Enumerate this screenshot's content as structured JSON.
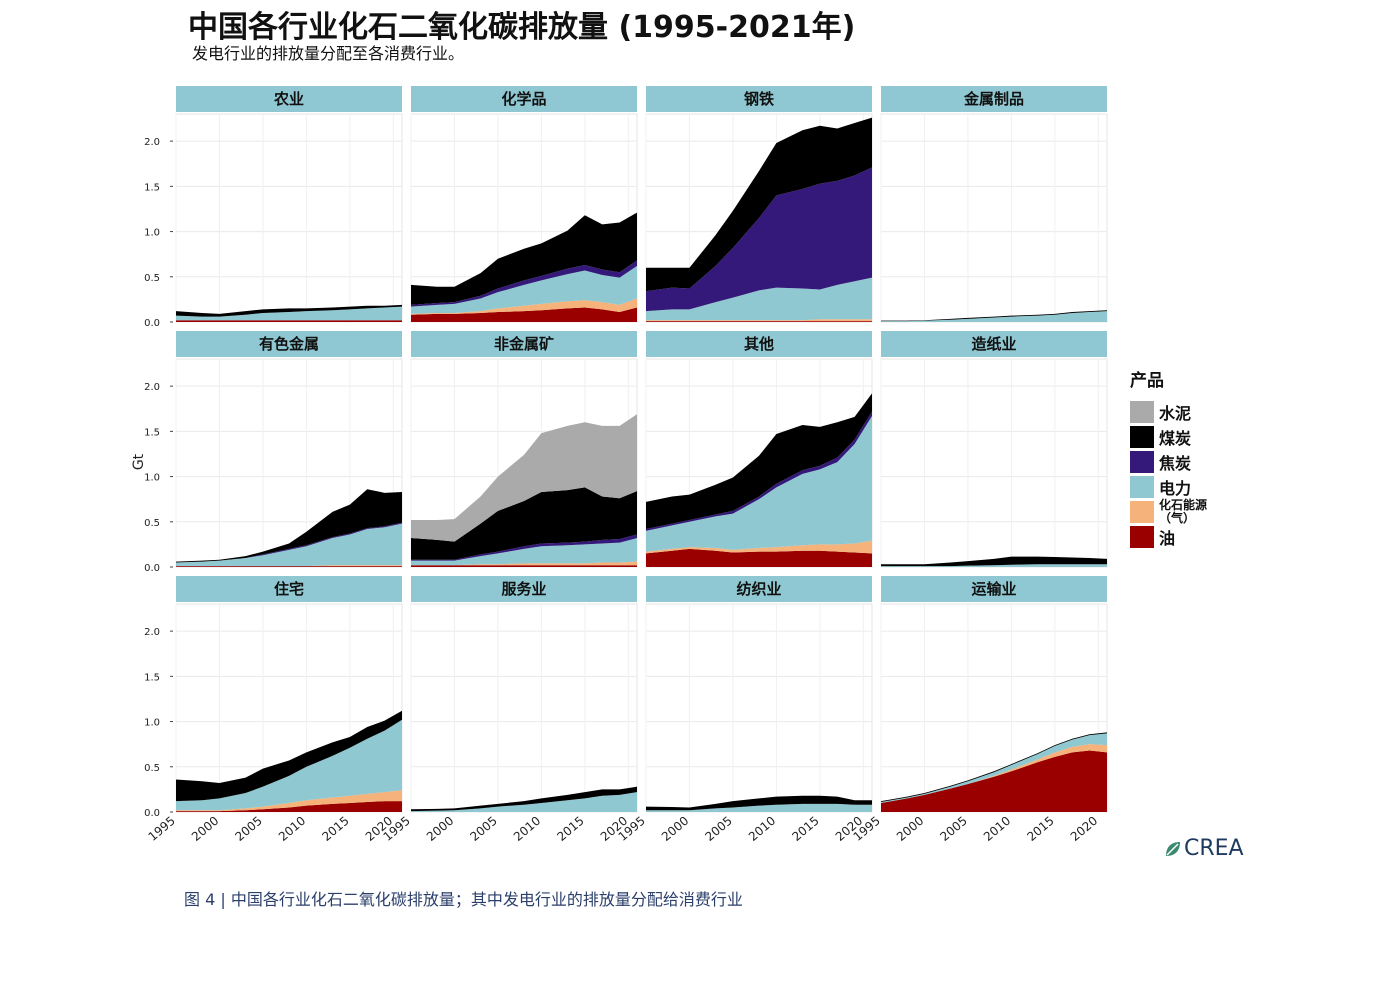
{
  "header": {
    "title": "中国各行业化石二氧化碳排放量 (1995-2021年)",
    "subtitle": "发电行业的排放量分配至各消费行业。"
  },
  "caption": "图 4 | 中国各行业化石二氧化碳排放量；其中发电行业的排放量分配给消费行业",
  "logo": {
    "text": "CREA"
  },
  "colors": {
    "水泥": "#aaaaaa",
    "煤炭": "#000000",
    "焦炭": "#35197a",
    "电力": "#90c8d2",
    "化石能源(气)": "#f5b27a",
    "油": "#9b0000",
    "panel_header": "#8fc8d2"
  },
  "legend": {
    "title": "产品",
    "items": [
      {
        "key": "水泥",
        "label": "水泥"
      },
      {
        "key": "煤炭",
        "label": "煤炭"
      },
      {
        "key": "焦炭",
        "label": "焦炭"
      },
      {
        "key": "电力",
        "label": "电力"
      },
      {
        "key": "化石能源(气)",
        "label": "化石能源（气）"
      },
      {
        "key": "油",
        "label": "油"
      }
    ]
  },
  "chart_data": {
    "type": "area",
    "stacked": true,
    "ylabel": "Gt",
    "ylim": [
      0,
      2.3
    ],
    "yticks": [
      0.0,
      0.5,
      1.0,
      1.5,
      2.0
    ],
    "ytick_labels": [
      "0.0",
      "0.5",
      "1.0",
      "1.5",
      "2.0"
    ],
    "xticks": [
      1995,
      2000,
      2005,
      2010,
      2015,
      2020
    ],
    "x": [
      1995,
      1998,
      2000,
      2003,
      2005,
      2008,
      2010,
      2013,
      2015,
      2017,
      2019,
      2021
    ],
    "grid": true,
    "stack_order": [
      "油",
      "化石能源(气)",
      "电力",
      "焦炭",
      "煤炭",
      "水泥"
    ],
    "panels": [
      {
        "name": "农业",
        "series": {
          "油": [
            0.02,
            0.02,
            0.02,
            0.02,
            0.02,
            0.02,
            0.02,
            0.02,
            0.02,
            0.02,
            0.02,
            0.02
          ],
          "化石能源(气)": [
            0,
            0,
            0,
            0,
            0,
            0,
            0,
            0,
            0,
            0,
            0,
            0
          ],
          "电力": [
            0.05,
            0.04,
            0.04,
            0.06,
            0.08,
            0.09,
            0.1,
            0.11,
            0.12,
            0.13,
            0.14,
            0.15
          ],
          "焦炭": [
            0,
            0,
            0,
            0,
            0,
            0,
            0,
            0,
            0,
            0,
            0,
            0
          ],
          "煤炭": [
            0.05,
            0.04,
            0.03,
            0.04,
            0.04,
            0.04,
            0.03,
            0.03,
            0.03,
            0.03,
            0.02,
            0.02
          ],
          "水泥": [
            0,
            0,
            0,
            0,
            0,
            0,
            0,
            0,
            0,
            0,
            0,
            0
          ]
        }
      },
      {
        "name": "化学品",
        "series": {
          "油": [
            0.08,
            0.09,
            0.09,
            0.1,
            0.11,
            0.12,
            0.13,
            0.15,
            0.16,
            0.14,
            0.11,
            0.16
          ],
          "化石能源(气)": [
            0.01,
            0.01,
            0.01,
            0.02,
            0.04,
            0.06,
            0.07,
            0.08,
            0.08,
            0.08,
            0.08,
            0.1
          ],
          "电力": [
            0.08,
            0.09,
            0.1,
            0.14,
            0.18,
            0.23,
            0.26,
            0.3,
            0.33,
            0.3,
            0.3,
            0.36
          ],
          "焦炭": [
            0.02,
            0.02,
            0.02,
            0.03,
            0.04,
            0.05,
            0.05,
            0.06,
            0.06,
            0.06,
            0.06,
            0.06
          ],
          "煤炭": [
            0.22,
            0.18,
            0.17,
            0.25,
            0.33,
            0.35,
            0.36,
            0.42,
            0.55,
            0.5,
            0.55,
            0.53
          ],
          "水泥": [
            0,
            0,
            0,
            0,
            0,
            0,
            0,
            0,
            0,
            0,
            0,
            0
          ]
        }
      },
      {
        "name": "钢铁",
        "series": {
          "油": [
            0.01,
            0.01,
            0.01,
            0.01,
            0.01,
            0.01,
            0.01,
            0.01,
            0.01,
            0.01,
            0.01,
            0.01
          ],
          "化石能源(气)": [
            0.01,
            0.01,
            0.01,
            0.01,
            0.01,
            0.01,
            0.01,
            0.01,
            0.02,
            0.02,
            0.02,
            0.02
          ],
          "电力": [
            0.1,
            0.12,
            0.12,
            0.2,
            0.25,
            0.33,
            0.36,
            0.35,
            0.33,
            0.38,
            0.42,
            0.46
          ],
          "焦炭": [
            0.22,
            0.24,
            0.23,
            0.4,
            0.55,
            0.8,
            1.02,
            1.1,
            1.17,
            1.15,
            1.17,
            1.22
          ],
          "煤炭": [
            0.26,
            0.22,
            0.23,
            0.34,
            0.41,
            0.52,
            0.58,
            0.65,
            0.64,
            0.58,
            0.58,
            0.55
          ],
          "水泥": [
            0,
            0,
            0,
            0,
            0,
            0,
            0,
            0,
            0,
            0,
            0,
            0
          ]
        }
      },
      {
        "name": "金属制品",
        "series": {
          "油": [
            0,
            0,
            0,
            0,
            0,
            0,
            0,
            0,
            0,
            0,
            0,
            0
          ],
          "化石能源(气)": [
            0,
            0,
            0,
            0,
            0,
            0,
            0,
            0,
            0,
            0,
            0,
            0
          ],
          "电力": [
            0.01,
            0.01,
            0.015,
            0.025,
            0.035,
            0.05,
            0.06,
            0.07,
            0.08,
            0.1,
            0.11,
            0.12
          ],
          "焦炭": [
            0,
            0,
            0,
            0,
            0,
            0,
            0,
            0,
            0,
            0,
            0,
            0
          ],
          "煤炭": [
            0.005,
            0.005,
            0.005,
            0.01,
            0.01,
            0.01,
            0.01,
            0.01,
            0.01,
            0.01,
            0.01,
            0.01
          ],
          "水泥": [
            0,
            0,
            0,
            0,
            0,
            0,
            0,
            0,
            0,
            0,
            0,
            0
          ]
        }
      },
      {
        "name": "有色金属",
        "series": {
          "油": [
            0.01,
            0.01,
            0.01,
            0.01,
            0.01,
            0.01,
            0.01,
            0.01,
            0.01,
            0.01,
            0.01,
            0.01
          ],
          "化石能源(气)": [
            0,
            0,
            0,
            0,
            0,
            0,
            0,
            0.01,
            0.01,
            0.01,
            0.01,
            0.01
          ],
          "电力": [
            0.04,
            0.05,
            0.06,
            0.09,
            0.12,
            0.18,
            0.22,
            0.3,
            0.34,
            0.4,
            0.42,
            0.46
          ],
          "焦炭": [
            0,
            0,
            0,
            0,
            0.01,
            0.01,
            0.01,
            0.01,
            0.01,
            0.01,
            0.01,
            0.01
          ],
          "煤炭": [
            0.01,
            0.01,
            0.01,
            0.02,
            0.03,
            0.06,
            0.15,
            0.28,
            0.32,
            0.43,
            0.37,
            0.34
          ],
          "水泥": [
            0,
            0,
            0,
            0,
            0,
            0,
            0,
            0,
            0,
            0,
            0,
            0
          ]
        }
      },
      {
        "name": "非金属矿",
        "series": {
          "油": [
            0.02,
            0.02,
            0.02,
            0.02,
            0.02,
            0.02,
            0.02,
            0.02,
            0.02,
            0.02,
            0.02,
            0.02
          ],
          "化石能源(气)": [
            0,
            0,
            0,
            0.01,
            0.01,
            0.02,
            0.02,
            0.02,
            0.02,
            0.03,
            0.03,
            0.04
          ],
          "电力": [
            0.05,
            0.05,
            0.05,
            0.09,
            0.12,
            0.16,
            0.19,
            0.2,
            0.21,
            0.21,
            0.22,
            0.26
          ],
          "焦炭": [
            0.01,
            0.01,
            0.01,
            0.02,
            0.02,
            0.03,
            0.03,
            0.03,
            0.03,
            0.04,
            0.04,
            0.04
          ],
          "煤炭": [
            0.24,
            0.22,
            0.2,
            0.34,
            0.45,
            0.5,
            0.57,
            0.58,
            0.6,
            0.48,
            0.45,
            0.48
          ],
          "水泥": [
            0.2,
            0.22,
            0.25,
            0.3,
            0.38,
            0.51,
            0.65,
            0.71,
            0.72,
            0.78,
            0.8,
            0.85
          ]
        }
      },
      {
        "name": "其他",
        "series": {
          "油": [
            0.15,
            0.18,
            0.2,
            0.18,
            0.16,
            0.17,
            0.17,
            0.18,
            0.18,
            0.17,
            0.16,
            0.15
          ],
          "化石能源(气)": [
            0.02,
            0.02,
            0.02,
            0.03,
            0.03,
            0.04,
            0.05,
            0.06,
            0.07,
            0.08,
            0.1,
            0.14
          ],
          "电力": [
            0.23,
            0.26,
            0.28,
            0.35,
            0.4,
            0.54,
            0.66,
            0.79,
            0.83,
            0.91,
            1.1,
            1.38
          ],
          "焦炭": [
            0.02,
            0.02,
            0.02,
            0.02,
            0.03,
            0.03,
            0.04,
            0.04,
            0.04,
            0.05,
            0.05,
            0.05
          ],
          "煤炭": [
            0.3,
            0.3,
            0.28,
            0.33,
            0.37,
            0.45,
            0.55,
            0.5,
            0.43,
            0.39,
            0.25,
            0.2
          ],
          "水泥": [
            0,
            0,
            0,
            0,
            0,
            0,
            0,
            0,
            0,
            0,
            0,
            0
          ]
        }
      },
      {
        "name": "造纸业",
        "series": {
          "油": [
            0,
            0,
            0,
            0,
            0,
            0,
            0,
            0,
            0,
            0,
            0,
            0
          ],
          "化石能源(气)": [
            0,
            0,
            0,
            0,
            0,
            0,
            0,
            0,
            0,
            0,
            0,
            0
          ],
          "电力": [
            0.01,
            0.01,
            0.01,
            0.01,
            0.015,
            0.02,
            0.025,
            0.03,
            0.03,
            0.03,
            0.03,
            0.03
          ],
          "焦炭": [
            0,
            0,
            0,
            0,
            0,
            0,
            0,
            0,
            0,
            0,
            0,
            0
          ],
          "煤炭": [
            0.02,
            0.02,
            0.02,
            0.04,
            0.05,
            0.07,
            0.09,
            0.085,
            0.08,
            0.075,
            0.07,
            0.06
          ],
          "水泥": [
            0,
            0,
            0,
            0,
            0,
            0,
            0,
            0,
            0,
            0,
            0,
            0
          ]
        }
      },
      {
        "name": "住宅",
        "series": {
          "油": [
            0.01,
            0.01,
            0.01,
            0.02,
            0.03,
            0.05,
            0.07,
            0.09,
            0.1,
            0.11,
            0.12,
            0.12
          ],
          "化石能源(气)": [
            0.01,
            0.01,
            0.01,
            0.02,
            0.03,
            0.05,
            0.06,
            0.07,
            0.08,
            0.09,
            0.1,
            0.12
          ],
          "电力": [
            0.1,
            0.11,
            0.13,
            0.17,
            0.22,
            0.3,
            0.37,
            0.46,
            0.53,
            0.61,
            0.68,
            0.78
          ],
          "焦炭": [
            0,
            0,
            0,
            0,
            0,
            0,
            0,
            0,
            0,
            0,
            0,
            0
          ],
          "煤炭": [
            0.24,
            0.21,
            0.17,
            0.17,
            0.2,
            0.17,
            0.16,
            0.15,
            0.12,
            0.13,
            0.11,
            0.1
          ],
          "水泥": [
            0,
            0,
            0,
            0,
            0,
            0,
            0,
            0,
            0,
            0,
            0,
            0
          ]
        }
      },
      {
        "name": "服务业",
        "series": {
          "油": [
            0,
            0,
            0,
            0,
            0,
            0,
            0,
            0,
            0,
            0,
            0,
            0
          ],
          "化石能源(气)": [
            0,
            0,
            0,
            0,
            0,
            0,
            0,
            0,
            0,
            0,
            0,
            0
          ],
          "电力": [
            0.01,
            0.015,
            0.02,
            0.04,
            0.06,
            0.08,
            0.1,
            0.13,
            0.15,
            0.18,
            0.19,
            0.22
          ],
          "焦炭": [
            0,
            0,
            0,
            0,
            0,
            0,
            0,
            0,
            0,
            0,
            0,
            0
          ],
          "煤炭": [
            0.02,
            0.02,
            0.02,
            0.03,
            0.03,
            0.04,
            0.05,
            0.06,
            0.07,
            0.07,
            0.06,
            0.06
          ],
          "水泥": [
            0,
            0,
            0,
            0,
            0,
            0,
            0,
            0,
            0,
            0,
            0,
            0
          ]
        }
      },
      {
        "name": "纺织业",
        "series": {
          "油": [
            0,
            0,
            0,
            0,
            0,
            0,
            0,
            0,
            0,
            0,
            0,
            0
          ],
          "化石能源(气)": [
            0,
            0,
            0,
            0,
            0,
            0,
            0,
            0,
            0,
            0,
            0,
            0
          ],
          "电力": [
            0.02,
            0.02,
            0.02,
            0.04,
            0.05,
            0.07,
            0.08,
            0.09,
            0.09,
            0.09,
            0.08,
            0.08
          ],
          "焦炭": [
            0,
            0,
            0,
            0,
            0,
            0,
            0,
            0,
            0,
            0,
            0,
            0
          ],
          "煤炭": [
            0.04,
            0.035,
            0.03,
            0.05,
            0.07,
            0.08,
            0.09,
            0.09,
            0.09,
            0.08,
            0.05,
            0.05
          ],
          "水泥": [
            0,
            0,
            0,
            0,
            0,
            0,
            0,
            0,
            0,
            0,
            0,
            0
          ]
        }
      },
      {
        "name": "运输业",
        "series": {
          "油": [
            0.1,
            0.15,
            0.19,
            0.26,
            0.31,
            0.39,
            0.45,
            0.55,
            0.61,
            0.66,
            0.68,
            0.66
          ],
          "化石能源(气)": [
            0,
            0,
            0,
            0,
            0,
            0.01,
            0.02,
            0.03,
            0.05,
            0.06,
            0.07,
            0.08
          ],
          "电力": [
            0.01,
            0.01,
            0.01,
            0.02,
            0.03,
            0.04,
            0.05,
            0.06,
            0.07,
            0.08,
            0.1,
            0.13
          ],
          "焦炭": [
            0,
            0,
            0,
            0,
            0,
            0,
            0,
            0,
            0,
            0,
            0,
            0
          ],
          "煤炭": [
            0.01,
            0.01,
            0.01,
            0.01,
            0.01,
            0.01,
            0.01,
            0.01,
            0.01,
            0.01,
            0.01,
            0.01
          ],
          "水泥": [
            0,
            0,
            0,
            0,
            0,
            0,
            0,
            0,
            0,
            0,
            0,
            0
          ]
        }
      }
    ]
  }
}
